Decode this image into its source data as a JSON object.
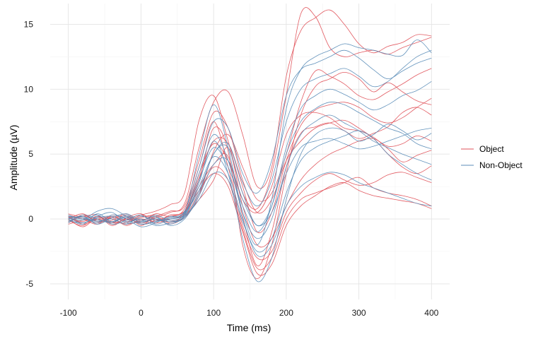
{
  "chart_data": {
    "type": "line",
    "title": "",
    "xlabel": "Time (ms)",
    "ylabel": "Amplitude (µV)",
    "xlim": [
      -125,
      425
    ],
    "ylim": [
      -6.2,
      16.6
    ],
    "xticks": [
      -100,
      0,
      100,
      200,
      300,
      400
    ],
    "xtick_labels": [
      "-100",
      "0",
      "100",
      "200",
      "300",
      "400"
    ],
    "yticks": [
      -5,
      0,
      5,
      10,
      15
    ],
    "ytick_labels": [
      "-5",
      "0",
      "5",
      "10",
      "15"
    ],
    "grid": true,
    "legend": {
      "position": "right",
      "entries": [
        {
          "label": "Object",
          "color": "#E0525A"
        },
        {
          "label": "Non-Object",
          "color": "#5B8DB8"
        }
      ]
    },
    "x": [
      -100,
      -80,
      -60,
      -40,
      -20,
      0,
      20,
      40,
      60,
      80,
      100,
      120,
      140,
      160,
      180,
      200,
      220,
      240,
      260,
      280,
      300,
      320,
      340,
      360,
      380,
      400
    ],
    "series": [
      {
        "group": "Object",
        "values": [
          0.4,
          0.1,
          -0.3,
          0.2,
          -0.1,
          0.3,
          0.6,
          1.1,
          2.0,
          7.6,
          9.5,
          6.0,
          2.0,
          0.8,
          3.5,
          9.5,
          15.8,
          15.6,
          13.2,
          12.5,
          12.8,
          13.0,
          12.7,
          13.2,
          13.6,
          14.0
        ]
      },
      {
        "group": "Object",
        "values": [
          0.1,
          -0.2,
          0.2,
          -0.4,
          0.0,
          -0.3,
          0.1,
          0.5,
          1.2,
          5.5,
          9.0,
          9.8,
          6.5,
          2.5,
          4.0,
          11.0,
          14.5,
          15.5,
          16.1,
          15.0,
          13.5,
          12.8,
          13.3,
          13.6,
          14.2,
          14.1
        ]
      },
      {
        "group": "Object",
        "values": [
          -0.3,
          0.2,
          -0.1,
          0.1,
          -0.5,
          0.0,
          -0.2,
          0.3,
          0.6,
          3.0,
          7.0,
          5.2,
          -2.0,
          -4.6,
          -2.0,
          3.5,
          8.0,
          10.2,
          10.8,
          11.3,
          10.8,
          9.8,
          10.5,
          9.8,
          9.1,
          8.8
        ]
      },
      {
        "group": "Object",
        "values": [
          0.2,
          -0.4,
          0.0,
          -0.3,
          0.3,
          -0.5,
          0.2,
          -0.3,
          0.4,
          2.5,
          4.2,
          4.8,
          0.2,
          -3.6,
          -1.0,
          4.0,
          6.6,
          7.1,
          7.4,
          6.8,
          6.2,
          6.6,
          7.1,
          8.2,
          8.6,
          8.0
        ]
      },
      {
        "group": "Object",
        "values": [
          0.0,
          -0.6,
          0.1,
          -0.2,
          -0.3,
          0.2,
          -0.1,
          0.0,
          0.3,
          1.5,
          3.0,
          5.5,
          1.0,
          -2.0,
          -1.5,
          1.0,
          3.0,
          4.2,
          5.0,
          5.5,
          6.0,
          6.2,
          5.6,
          5.8,
          6.4,
          6.0
        ]
      },
      {
        "group": "Object",
        "values": [
          0.3,
          0.0,
          -0.4,
          0.3,
          0.0,
          -0.2,
          0.4,
          0.2,
          0.8,
          4.0,
          7.5,
          4.0,
          -0.5,
          -3.0,
          -2.5,
          0.5,
          2.0,
          3.0,
          3.5,
          3.0,
          2.6,
          2.8,
          3.4,
          3.6,
          3.2,
          2.8
        ]
      },
      {
        "group": "Object",
        "values": [
          -0.2,
          0.3,
          -0.2,
          -0.1,
          0.4,
          -0.3,
          0.0,
          -0.4,
          0.2,
          2.0,
          4.0,
          3.0,
          -0.8,
          -3.8,
          -3.0,
          0.0,
          1.5,
          2.0,
          2.4,
          2.8,
          3.2,
          2.4,
          2.0,
          1.8,
          1.5,
          1.0
        ]
      },
      {
        "group": "Object",
        "values": [
          0.1,
          0.2,
          0.3,
          -0.5,
          0.1,
          0.4,
          -0.3,
          0.1,
          0.5,
          3.5,
          5.8,
          4.5,
          1.5,
          0.5,
          2.5,
          6.5,
          8.0,
          8.2,
          7.8,
          7.0,
          6.8,
          6.3,
          5.4,
          4.4,
          4.9,
          5.3
        ]
      },
      {
        "group": "Object",
        "values": [
          -0.4,
          -0.1,
          0.0,
          0.2,
          -0.2,
          0.1,
          0.3,
          -0.1,
          0.1,
          1.8,
          5.2,
          6.5,
          4.0,
          1.5,
          2.0,
          5.0,
          9.0,
          11.4,
          11.0,
          10.4,
          9.5,
          9.2,
          9.8,
          10.4,
          11.1,
          11.6
        ]
      },
      {
        "group": "Object",
        "values": [
          0.2,
          -0.3,
          0.1,
          0.0,
          -0.4,
          -0.1,
          0.2,
          0.6,
          1.0,
          4.5,
          8.2,
          7.0,
          3.0,
          0.5,
          1.5,
          4.5,
          6.0,
          7.0,
          7.4,
          7.6,
          7.0,
          6.2,
          5.0,
          4.0,
          3.5,
          4.1
        ]
      },
      {
        "group": "Object",
        "values": [
          0.0,
          0.4,
          -0.2,
          0.1,
          0.2,
          -0.4,
          -0.1,
          0.2,
          0.6,
          2.2,
          3.5,
          2.5,
          -1.0,
          -4.2,
          -3.5,
          -0.5,
          1.0,
          1.8,
          2.5,
          2.8,
          2.2,
          1.8,
          1.6,
          1.4,
          1.2,
          0.8
        ]
      },
      {
        "group": "Object",
        "values": [
          -0.1,
          -0.5,
          0.2,
          -0.3,
          0.0,
          0.3,
          0.0,
          -0.2,
          0.4,
          3.2,
          6.0,
          5.8,
          2.5,
          -1.0,
          0.5,
          4.5,
          7.2,
          8.4,
          8.8,
          9.0,
          8.6,
          7.8,
          7.4,
          7.8,
          8.6,
          9.3
        ]
      },
      {
        "group": "Non-Object",
        "values": [
          0.3,
          0.0,
          0.6,
          0.8,
          0.2,
          -0.4,
          -0.2,
          0.0,
          0.5,
          5.0,
          8.8,
          5.5,
          0.5,
          -2.0,
          1.5,
          8.5,
          11.5,
          12.5,
          13.0,
          13.5,
          13.2,
          13.0,
          12.7,
          12.6,
          13.8,
          12.8
        ]
      },
      {
        "group": "Non-Object",
        "values": [
          0.1,
          -0.3,
          0.2,
          0.5,
          -0.2,
          0.0,
          -0.5,
          -0.3,
          0.1,
          2.0,
          5.0,
          5.5,
          2.0,
          -0.5,
          1.0,
          5.0,
          7.5,
          8.5,
          9.0,
          8.8,
          8.2,
          7.6,
          7.0,
          6.6,
          5.8,
          5.4
        ]
      },
      {
        "group": "Non-Object",
        "values": [
          -0.2,
          0.2,
          -0.3,
          0.3,
          0.0,
          -0.6,
          -0.3,
          0.2,
          0.3,
          2.8,
          6.0,
          3.5,
          -1.5,
          -4.8,
          -3.0,
          1.5,
          5.0,
          6.5,
          7.0,
          6.8,
          6.0,
          6.5,
          7.3,
          6.8,
          6.1,
          6.6
        ]
      },
      {
        "group": "Non-Object",
        "values": [
          0.0,
          -0.4,
          0.4,
          -0.2,
          0.3,
          -0.3,
          0.1,
          -0.4,
          0.2,
          1.5,
          3.5,
          3.0,
          -0.2,
          -2.5,
          -1.5,
          2.0,
          4.5,
          5.5,
          6.0,
          6.4,
          6.8,
          6.2,
          5.0,
          4.2,
          3.5,
          3.0
        ]
      },
      {
        "group": "Non-Object",
        "values": [
          0.2,
          0.1,
          -0.2,
          0.0,
          -0.4,
          0.2,
          -0.1,
          0.1,
          0.6,
          4.0,
          7.5,
          7.0,
          3.5,
          2.0,
          4.5,
          9.5,
          11.5,
          12.0,
          12.5,
          13.0,
          12.4,
          11.5,
          10.8,
          11.4,
          12.0,
          12.4
        ]
      },
      {
        "group": "Non-Object",
        "values": [
          -0.3,
          0.3,
          0.0,
          -0.3,
          0.2,
          -0.2,
          0.0,
          -0.2,
          0.2,
          2.5,
          4.8,
          3.5,
          0.0,
          -2.8,
          -2.0,
          1.0,
          2.5,
          3.2,
          3.6,
          3.4,
          2.8,
          2.4,
          2.0,
          1.6,
          1.2,
          1.0
        ]
      },
      {
        "group": "Non-Object",
        "values": [
          0.1,
          -0.1,
          0.3,
          -0.4,
          -0.1,
          0.3,
          -0.4,
          0.0,
          0.4,
          3.0,
          5.5,
          4.0,
          1.0,
          -1.0,
          1.0,
          5.5,
          8.5,
          9.5,
          10.0,
          9.6,
          9.0,
          8.4,
          8.8,
          9.5,
          9.9,
          10.6
        ]
      },
      {
        "group": "Non-Object",
        "values": [
          0.0,
          0.2,
          -0.4,
          0.1,
          0.4,
          -0.1,
          0.2,
          -0.5,
          0.0,
          1.8,
          4.2,
          4.5,
          1.5,
          -0.5,
          0.5,
          3.5,
          5.5,
          6.0,
          6.2,
          5.8,
          5.4,
          5.6,
          6.0,
          6.4,
          6.8,
          7.0
        ]
      },
      {
        "group": "Non-Object",
        "values": [
          -0.1,
          -0.3,
          0.1,
          0.2,
          -0.3,
          -0.2,
          0.3,
          -0.1,
          0.3,
          3.5,
          6.5,
          4.5,
          0.5,
          -1.5,
          0.0,
          4.0,
          6.5,
          7.5,
          8.0,
          7.4,
          6.8,
          6.0,
          5.5,
          5.0,
          4.6,
          4.2
        ]
      },
      {
        "group": "Non-Object",
        "values": [
          0.2,
          0.0,
          -0.1,
          -0.2,
          0.1,
          -0.4,
          -0.2,
          0.1,
          0.5,
          2.2,
          5.0,
          5.8,
          2.8,
          1.0,
          3.0,
          7.5,
          10.0,
          10.8,
          11.2,
          11.6,
          11.0,
          10.2,
          10.6,
          11.6,
          12.5,
          13.0
        ]
      }
    ]
  }
}
